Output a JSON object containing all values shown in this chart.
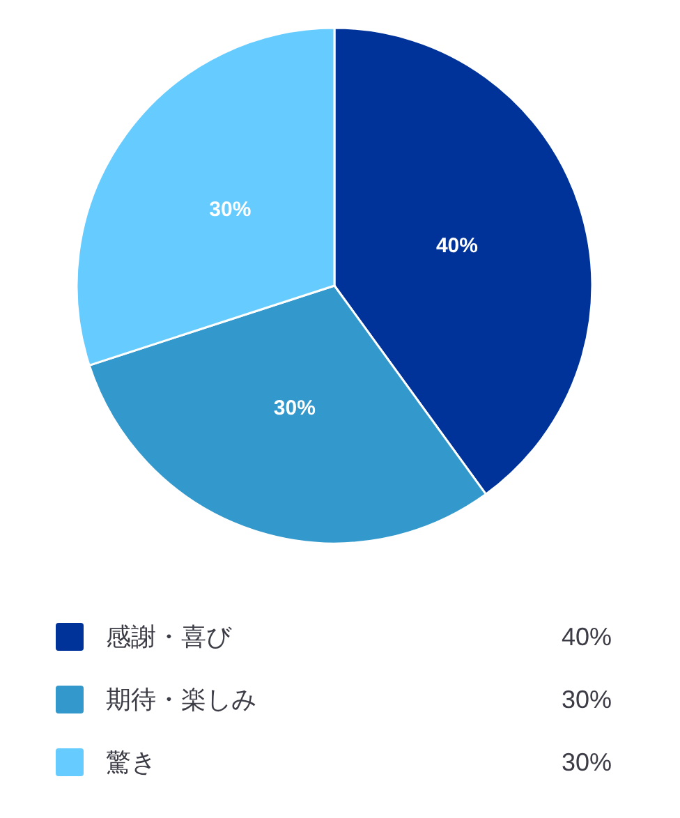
{
  "chart_data": {
    "type": "pie",
    "categories": [
      "感謝・喜び",
      "期待・楽しみ",
      "驚き"
    ],
    "values": [
      40,
      30,
      30
    ],
    "colors": [
      "#003399",
      "#3399cc",
      "#66ccff"
    ],
    "value_labels": [
      "40%",
      "30%",
      "30%"
    ],
    "legend": "bottom"
  }
}
